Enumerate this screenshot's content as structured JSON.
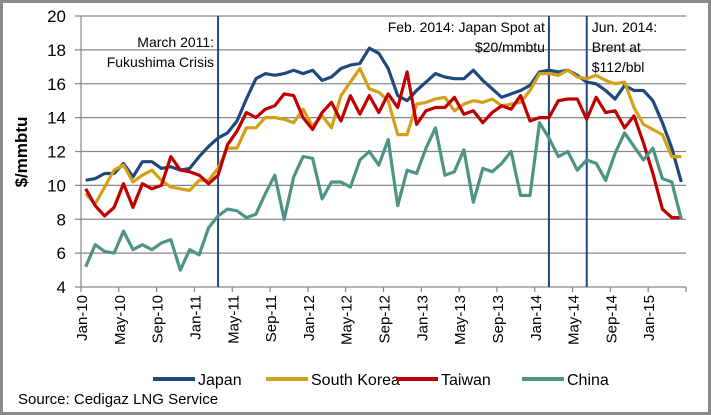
{
  "chart_data": {
    "type": "line",
    "title": "",
    "xlabel": "",
    "ylabel": "$/mmbtu",
    "ylim": [
      4,
      20
    ],
    "yticks": [
      "4",
      "6",
      "8",
      "10",
      "12",
      "14",
      "16",
      "18",
      "20"
    ],
    "ytick_values": [
      4,
      6,
      8,
      10,
      12,
      14,
      16,
      18,
      20
    ],
    "grid": true,
    "legend_position": "bottom",
    "x_start": "Jan-10",
    "n_points": 64,
    "x_tick_labels": [
      "Jan-10",
      "May-10",
      "Sep-10",
      "Jan-11",
      "May-11",
      "Sep-11",
      "Jan-12",
      "May-12",
      "Sep-12",
      "Jan-13",
      "May-13",
      "Sep-13",
      "Jan-14",
      "May-14",
      "Sep-14",
      "Jan-15"
    ],
    "x_tick_every_months": 4,
    "annotations": [
      {
        "month_index": 14.5,
        "lines": [
          "March 2011:",
          "Fukushima Crisis"
        ],
        "side": "left"
      },
      {
        "month_index": 49.5,
        "lines": [
          "Feb. 2014: Japan Spot at",
          "$20/mmbtu"
        ],
        "side": "left"
      },
      {
        "month_index": 53.5,
        "lines": [
          "Jun. 2014:",
          "Brent at",
          "$112/bbl"
        ],
        "side": "right"
      }
    ],
    "series": [
      {
        "name": "Japan",
        "color": "#1f497d",
        "values": [
          10.3,
          10.4,
          10.7,
          10.7,
          11.3,
          10.5,
          11.4,
          11.4,
          11.0,
          11.1,
          10.9,
          11.0,
          11.7,
          12.3,
          12.8,
          13.1,
          13.8,
          15.1,
          16.3,
          16.6,
          16.5,
          16.6,
          16.8,
          16.6,
          16.8,
          16.2,
          16.4,
          16.9,
          17.1,
          17.2,
          18.1,
          17.8,
          16.9,
          15.3,
          15.0,
          15.6,
          16.1,
          16.6,
          16.4,
          16.3,
          16.3,
          16.8,
          16.2,
          15.7,
          15.2,
          15.4,
          15.6,
          15.9,
          16.7,
          16.8,
          16.7,
          16.8,
          16.5,
          16.1,
          16.0,
          15.6,
          15.1,
          15.9,
          15.6,
          15.6,
          15.0,
          13.7,
          12.2,
          10.2
        ]
      },
      {
        "name": "South Korea",
        "color": "#d4a017",
        "values": [
          9.5,
          8.9,
          9.9,
          10.9,
          11.2,
          10.2,
          10.6,
          10.9,
          10.3,
          9.9,
          9.8,
          9.7,
          10.3,
          10.3,
          11.0,
          12.2,
          12.2,
          13.4,
          13.4,
          14.0,
          14.0,
          13.9,
          13.7,
          14.5,
          13.5,
          14.1,
          13.4,
          15.3,
          16.1,
          16.9,
          15.7,
          15.5,
          15.0,
          13.0,
          13.0,
          14.8,
          14.9,
          15.1,
          15.2,
          14.4,
          14.8,
          15.0,
          14.9,
          15.1,
          14.7,
          14.8,
          14.9,
          15.6,
          16.6,
          16.6,
          16.5,
          16.8,
          16.4,
          16.3,
          16.5,
          16.2,
          16.0,
          16.1,
          14.6,
          13.6,
          13.3,
          13.0,
          11.7,
          11.7
        ]
      },
      {
        "name": "Taiwan",
        "color": "#c00000",
        "values": [
          9.8,
          8.8,
          8.2,
          8.7,
          10.1,
          8.7,
          10.1,
          9.8,
          10.0,
          11.7,
          10.9,
          10.8,
          10.6,
          10.1,
          10.6,
          12.4,
          13.2,
          14.3,
          14.0,
          14.5,
          14.7,
          15.4,
          15.3,
          14.0,
          13.3,
          14.3,
          14.9,
          13.8,
          15.3,
          14.2,
          15.3,
          14.3,
          15.4,
          14.6,
          16.7,
          13.6,
          14.4,
          14.6,
          14.6,
          15.2,
          14.2,
          14.4,
          13.7,
          14.3,
          14.7,
          14.5,
          15.3,
          13.8,
          14.0,
          14.0,
          15.0,
          15.1,
          15.1,
          13.9,
          15.2,
          14.3,
          14.4,
          13.4,
          14.1,
          12.5,
          10.7,
          8.6,
          8.1,
          8.1
        ]
      },
      {
        "name": "China",
        "color": "#4e9484",
        "values": [
          5.2,
          6.5,
          6.1,
          6.0,
          7.3,
          6.2,
          6.5,
          6.2,
          6.6,
          6.8,
          5.0,
          6.2,
          5.9,
          7.5,
          8.2,
          8.6,
          8.5,
          8.1,
          8.3,
          9.5,
          10.6,
          8.0,
          10.5,
          11.7,
          11.6,
          9.2,
          10.2,
          10.2,
          9.9,
          11.5,
          12.0,
          11.2,
          12.7,
          8.8,
          10.9,
          10.7,
          12.2,
          13.4,
          10.6,
          10.8,
          12.1,
          9.0,
          11.0,
          10.8,
          11.3,
          12.0,
          9.4,
          9.4,
          13.7,
          12.8,
          11.7,
          12.0,
          10.9,
          11.5,
          11.3,
          10.3,
          11.9,
          13.1,
          12.3,
          11.5,
          12.2,
          10.4,
          10.2,
          8.0
        ]
      }
    ],
    "source": "Source: Cedigaz LNG Service"
  }
}
